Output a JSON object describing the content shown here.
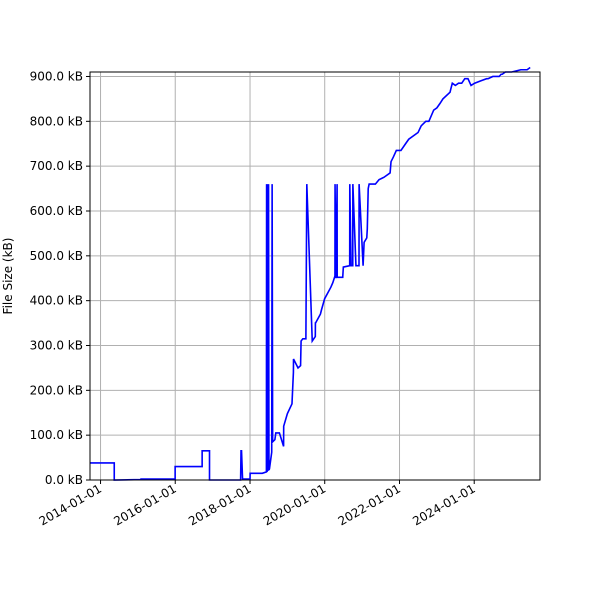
{
  "chart_data": {
    "type": "line",
    "title": "",
    "xlabel": "",
    "ylabel": "File Size (kB)",
    "xlim": [
      "2013-09-20",
      "2025-10-05"
    ],
    "ylim": [
      0,
      910
    ],
    "grid": true,
    "legend": "none",
    "line_color": "#0000ff",
    "grid_color": "#b0b0b0",
    "x_ticks": [
      {
        "value": "2014-01-01",
        "label": "2014-01-01"
      },
      {
        "value": "2016-01-01",
        "label": "2016-01-01"
      },
      {
        "value": "2018-01-01",
        "label": "2018-01-01"
      },
      {
        "value": "2020-01-01",
        "label": "2020-01-01"
      },
      {
        "value": "2022-01-01",
        "label": "2022-01-01"
      },
      {
        "value": "2024-01-01",
        "label": "2024-01-01"
      }
    ],
    "y_ticks": [
      {
        "value": 0,
        "label": "0.0 kB"
      },
      {
        "value": 100,
        "label": "100.0 kB"
      },
      {
        "value": 200,
        "label": "200.0 kB"
      },
      {
        "value": 300,
        "label": "300.0 kB"
      },
      {
        "value": 400,
        "label": "400.0 kB"
      },
      {
        "value": 500,
        "label": "500.0 kB"
      },
      {
        "value": 600,
        "label": "600.0 kB"
      },
      {
        "value": 700,
        "label": "700.0 kB"
      },
      {
        "value": 800,
        "label": "800.0 kB"
      },
      {
        "value": 900,
        "label": "900.0 kB"
      }
    ],
    "series": [
      {
        "x": [
          "2013-09-20",
          "2014-05-15",
          "2014-05-15",
          "2015-02-01",
          "2015-02-01",
          "2015-12-31",
          "2015-12-31",
          "2016-09-20",
          "2016-09-20",
          "2016-12-01",
          "2016-12-01",
          "2017-10-01",
          "2017-10-05",
          "2017-10-10",
          "2017-10-20",
          "2018-01-01",
          "2018-01-02",
          "2018-05-01",
          "2018-06-10",
          "2018-06-12",
          "2018-06-14",
          "2018-06-15",
          "2018-06-18",
          "2018-06-22",
          "2018-06-25",
          "2018-07-01",
          "2018-07-05",
          "2018-07-10",
          "2018-08-01",
          "2018-08-05",
          "2018-08-10",
          "2018-09-01",
          "2018-09-10",
          "2018-10-15",
          "2018-11-25",
          "2018-11-26",
          "2019-01-01",
          "2019-02-15",
          "2019-03-01",
          "2019-03-02",
          "2019-04-15",
          "2019-05-10",
          "2019-05-15",
          "2019-06-01",
          "2019-07-01",
          "2019-07-10",
          "2019-09-01",
          "2019-10-01",
          "2019-10-02",
          "2019-10-03",
          "2019-11-20",
          "2019-12-01",
          "2020-01-01",
          "2020-01-02",
          "2020-03-01",
          "2020-03-20",
          "2020-04-10",
          "2020-04-11",
          "2020-04-20",
          "2020-05-01",
          "2020-05-02",
          "2020-06-25",
          "2020-07-01",
          "2020-09-01",
          "2020-09-02",
          "2020-09-15",
          "2020-10-01",
          "2020-10-02",
          "2020-11-01",
          "2020-12-01",
          "2020-12-02",
          "2021-01-10",
          "2021-01-20",
          "2021-02-15",
          "2021-02-20",
          "2021-03-01",
          "2021-03-10",
          "2021-05-10",
          "2021-06-15",
          "2021-08-01",
          "2021-10-01",
          "2021-10-10",
          "2021-11-01",
          "2021-12-01",
          "2022-01-15",
          "2022-03-01",
          "2022-04-01",
          "2022-07-01",
          "2022-08-01",
          "2022-09-15",
          "2022-10-15",
          "2022-12-01",
          "2023-01-01",
          "2023-02-01",
          "2023-03-01",
          "2023-05-10",
          "2023-05-15",
          "2023-06-01",
          "2023-07-01",
          "2023-08-01",
          "2023-09-01",
          "2023-10-01",
          "2023-11-01",
          "2023-12-01",
          "2024-01-05",
          "2024-03-01",
          "2024-05-01",
          "2024-05-15",
          "2024-07-01",
          "2024-09-01",
          "2024-09-20",
          "2024-10-01",
          "2024-11-01",
          "2025-01-01",
          "2025-04-01",
          "2025-06-01",
          "2025-07-01"
        ],
        "values": [
          38,
          38,
          0,
          1,
          2,
          2,
          30,
          30,
          65,
          65,
          0,
          0,
          65,
          65,
          2,
          2,
          15,
          15,
          18,
          660,
          20,
          660,
          18,
          660,
          20,
          660,
          22,
          25,
          62,
          660,
          85,
          90,
          105,
          105,
          75,
          120,
          148,
          170,
          240,
          270,
          250,
          255,
          310,
          315,
          315,
          660,
          310,
          320,
          350,
          350,
          370,
          380,
          405,
          405,
          430,
          440,
          455,
          660,
          450,
          660,
          452,
          452,
          475,
          478,
          660,
          478,
          478,
          660,
          478,
          478,
          660,
          478,
          530,
          540,
          560,
          650,
          660,
          660,
          670,
          675,
          685,
          710,
          720,
          735,
          735,
          750,
          760,
          775,
          790,
          800,
          800,
          825,
          830,
          840,
          850,
          865,
          870,
          885,
          880,
          885,
          885,
          895,
          895,
          880,
          885,
          890,
          895,
          895,
          900,
          900,
          905,
          905,
          910,
          910,
          915,
          915,
          920
        ]
      }
    ]
  }
}
